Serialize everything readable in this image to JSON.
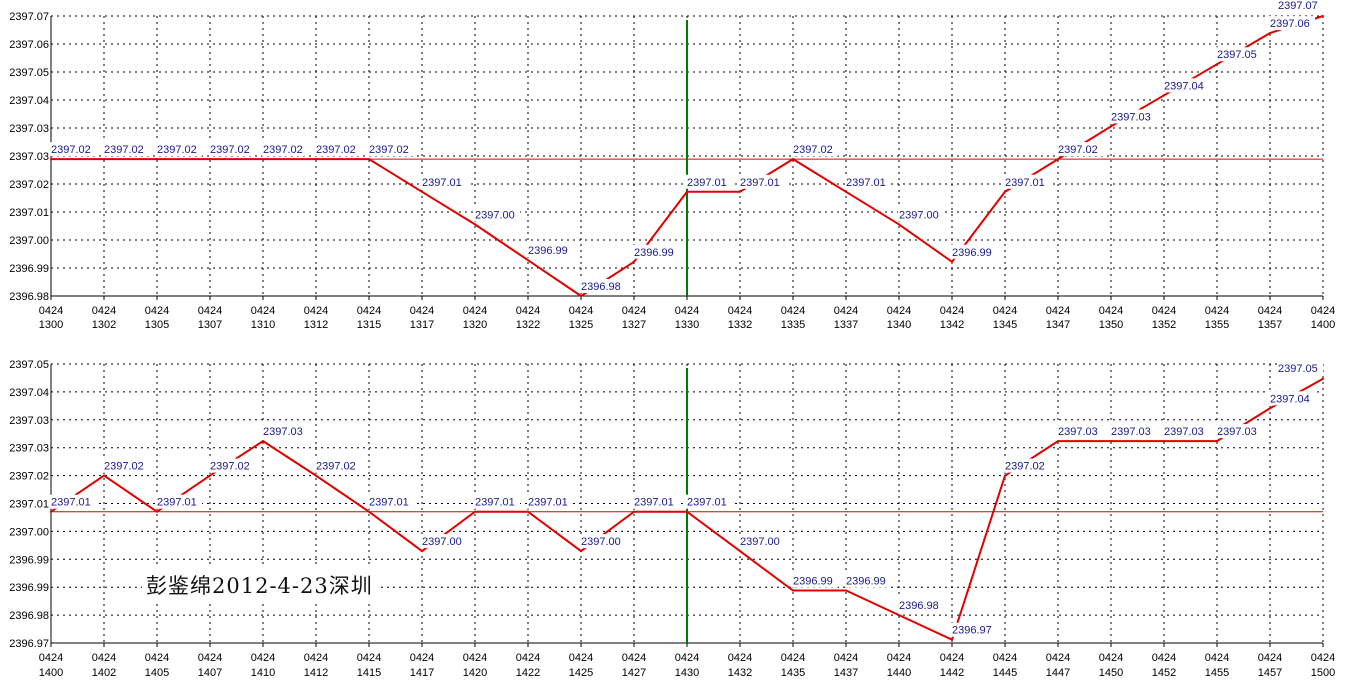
{
  "colors": {
    "line": "#e00000",
    "reference": "#e00000",
    "marker": "#007a00",
    "grid": "#000000",
    "label": "#1a1a8c",
    "axis": "#000000"
  },
  "signature": "彭鉴绵2012-4-23深圳",
  "chart_data": [
    {
      "type": "line",
      "date_label": "0424",
      "y_tick_labels": [
        "2397.07",
        "2397.06",
        "2397.05",
        "2397.04",
        "2397.03",
        "2397.03",
        "2397.02",
        "2397.01",
        "2397.00",
        "2396.99",
        "2396.98"
      ],
      "x_tick_labels": [
        "1300",
        "1302",
        "1305",
        "1307",
        "1310",
        "1312",
        "1315",
        "1317",
        "1320",
        "1322",
        "1325",
        "1327",
        "1330",
        "1332",
        "1335",
        "1337",
        "1340",
        "1342",
        "1345",
        "1347",
        "1350",
        "1352",
        "1355",
        "1357",
        "1400"
      ],
      "values": [
        2397.024,
        2397.024,
        2397.024,
        2397.024,
        2397.024,
        2397.024,
        2397.024,
        2397.0135,
        2397.003,
        2396.9915,
        2396.98,
        2396.991,
        2397.0135,
        2397.0135,
        2397.024,
        2397.0135,
        2397.003,
        2396.991,
        2397.0135,
        2397.024,
        2397.0345,
        2397.0445,
        2397.0545,
        2397.0645,
        2397.07
      ],
      "value_labels": [
        "2397.02",
        "2397.02",
        "2397.02",
        "2397.02",
        "2397.02",
        "2397.02",
        "2397.02",
        "2397.01",
        "2397.00",
        "2396.99",
        "2396.98",
        "2396.99",
        "2397.01",
        "2397.01",
        "2397.02",
        "2397.01",
        "2397.00",
        "2396.99",
        "2397.01",
        "2397.02",
        "2397.03",
        "2397.04",
        "2397.05",
        "2397.06",
        "2397.07"
      ],
      "reference_value": 2397.024,
      "marker_index": 12,
      "ylim": [
        2396.98,
        2397.07
      ]
    },
    {
      "type": "line",
      "date_label": "0424",
      "y_tick_labels": [
        "2397.05",
        "2397.04",
        "2397.03",
        "2397.03",
        "2397.02",
        "2397.01",
        "2397.00",
        "2396.99",
        "2396.99",
        "2396.98",
        "2396.97"
      ],
      "x_tick_labels": [
        "1400",
        "1402",
        "1405",
        "1407",
        "1410",
        "1412",
        "1415",
        "1417",
        "1420",
        "1422",
        "1425",
        "1427",
        "1430",
        "1432",
        "1435",
        "1437",
        "1440",
        "1442",
        "1445",
        "1447",
        "1450",
        "1452",
        "1455",
        "1457",
        "1500"
      ],
      "values": [
        2397.01,
        2397.021,
        2397.01,
        2397.021,
        2397.0315,
        2397.021,
        2397.01,
        2396.998,
        2397.01,
        2397.01,
        2396.998,
        2397.01,
        2397.01,
        2396.998,
        2396.986,
        2396.986,
        2396.9785,
        2396.971,
        2397.021,
        2397.0315,
        2397.0315,
        2397.0315,
        2397.0315,
        2397.0415,
        2397.0505
      ],
      "value_labels": [
        "2397.01",
        "2397.02",
        "2397.01",
        "2397.02",
        "2397.03",
        "2397.02",
        "2397.01",
        "2397.00",
        "2397.01",
        "2397.01",
        "2397.00",
        "2397.01",
        "2397.01",
        "2397.00",
        "2396.99",
        "2396.99",
        "2396.98",
        "2396.97",
        "2397.02",
        "2397.03",
        "2397.03",
        "2397.03",
        "2397.03",
        "2397.04",
        "2397.05"
      ],
      "reference_value": 2397.01,
      "marker_index": 12,
      "ylim": [
        2396.97,
        2397.055
      ]
    }
  ]
}
